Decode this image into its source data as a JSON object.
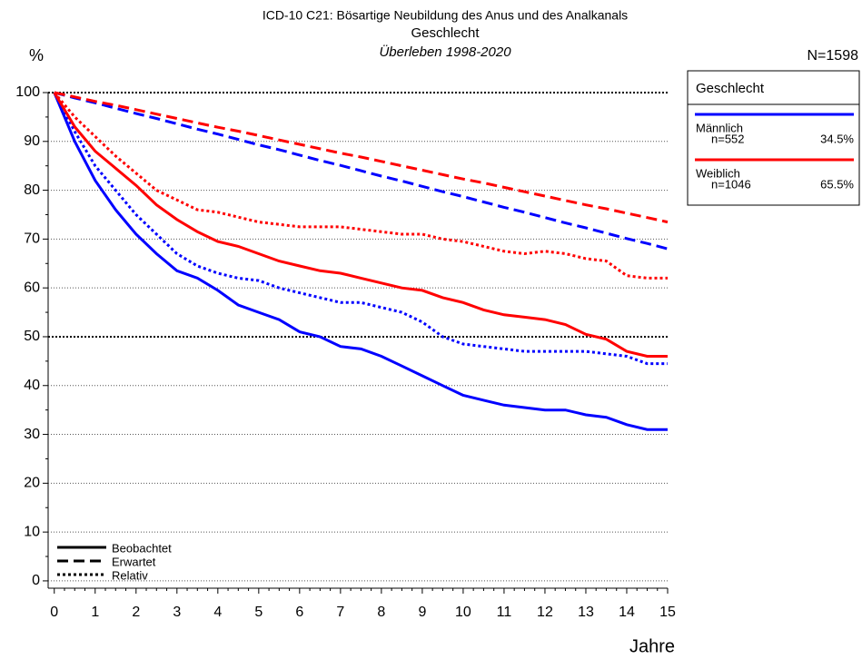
{
  "chart_data": {
    "type": "line",
    "title": "ICD-10 C21: Bösartige Neubildung des Anus und des Analkanals",
    "subtitle": "Geschlecht",
    "period": "Überleben 1998-2020",
    "y_label": "%",
    "x_label": "Jahre",
    "total": "N=1598",
    "legend_title": "Geschlecht",
    "xlim": [
      -0.15,
      15
    ],
    "ylim": [
      -1.5,
      100
    ],
    "xticks": [
      0,
      1,
      2,
      3,
      4,
      5,
      6,
      7,
      8,
      9,
      10,
      11,
      12,
      13,
      14,
      15
    ],
    "yticks": [
      0,
      10,
      20,
      30,
      40,
      50,
      60,
      70,
      80,
      90,
      100
    ],
    "grid": true,
    "styles": [
      {
        "name": "Beobachtet",
        "dash": "solid"
      },
      {
        "name": "Erwartet",
        "dash": "dashed"
      },
      {
        "name": "Relativ",
        "dash": "dotted"
      }
    ],
    "x": [
      0,
      0.5,
      1,
      1.5,
      2,
      2.5,
      3,
      3.5,
      4,
      4.5,
      5,
      5.5,
      6,
      6.5,
      7,
      7.5,
      8,
      8.5,
      9,
      9.5,
      10,
      10.5,
      11,
      11.5,
      12,
      12.5,
      13,
      13.5,
      14,
      14.5,
      15
    ],
    "groups": [
      {
        "name": "Männlich",
        "n": "n=552",
        "share": "34.5%",
        "color": "#0000ff",
        "series": [
          [
            100,
            90,
            82,
            76,
            71,
            67,
            63.5,
            62,
            59.5,
            56.5,
            55,
            53.5,
            51,
            50,
            48,
            47.5,
            46,
            44,
            42,
            40,
            38,
            37,
            36,
            35.5,
            35,
            35,
            34,
            33.5,
            32,
            31,
            31
          ],
          [
            100,
            98.9,
            97.9,
            96.8,
            95.7,
            94.7,
            93.6,
            92.5,
            91.5,
            90.4,
            89.3,
            88.3,
            87.2,
            86.1,
            85.1,
            84,
            82.9,
            81.9,
            80.8,
            79.7,
            78.7,
            77.6,
            76.5,
            75.5,
            74.4,
            73.3,
            72.3,
            71.2,
            70.1,
            69.1,
            68
          ],
          [
            100,
            92,
            85,
            80,
            75,
            71,
            67,
            64.5,
            63,
            62,
            61.5,
            60,
            59,
            58,
            57,
            57,
            56,
            55,
            53,
            50,
            48.5,
            48,
            47.5,
            47,
            47,
            47,
            47,
            46.5,
            46,
            44.5,
            44.5
          ]
        ]
      },
      {
        "name": "Weiblich",
        "n": "n=1046",
        "share": "65.5%",
        "color": "#ff0000",
        "series": [
          [
            100,
            93,
            88,
            84.5,
            81,
            77,
            74,
            71.5,
            69.5,
            68.5,
            67,
            65.5,
            64.5,
            63.5,
            63,
            62,
            61,
            60,
            59.5,
            58,
            57,
            55.5,
            54.5,
            54,
            53.5,
            52.5,
            50.5,
            49.5,
            47,
            46,
            46
          ],
          [
            100,
            99.1,
            98.2,
            97.4,
            96.5,
            95.6,
            94.7,
            93.8,
            92.9,
            92.1,
            91.2,
            90.3,
            89.4,
            88.5,
            87.6,
            86.8,
            85.9,
            85,
            84.1,
            83.2,
            82.3,
            81.5,
            80.6,
            79.7,
            78.8,
            77.9,
            77,
            76.2,
            75.3,
            74.4,
            73.5
          ],
          [
            100,
            95,
            91,
            87,
            83.5,
            80,
            78,
            76,
            75.5,
            74.5,
            73.5,
            73,
            72.5,
            72.5,
            72.5,
            72,
            71.5,
            71,
            71,
            70,
            69.5,
            68.5,
            67.5,
            67,
            67.5,
            67,
            66,
            65.5,
            62.5,
            62,
            62
          ]
        ]
      }
    ]
  }
}
